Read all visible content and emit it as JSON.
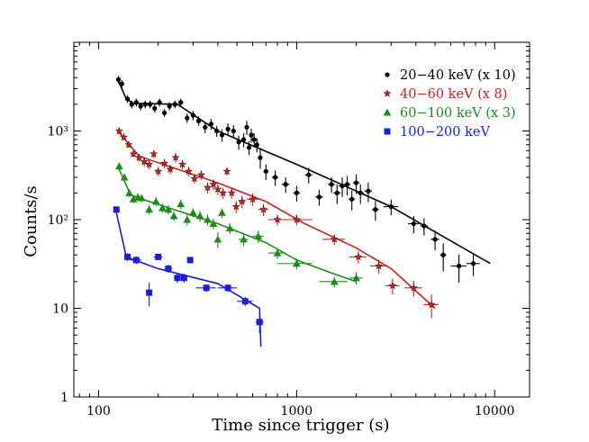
{
  "chart_data": {
    "type": "scatter",
    "xscale": "log",
    "yscale": "log",
    "xlim": [
      75,
      15000
    ],
    "ylim": [
      1,
      10000
    ],
    "xlabel": "Time since trigger (s)",
    "ylabel": "Counts/s",
    "xticks": [
      {
        "value": 100,
        "label": "100"
      },
      {
        "value": 1000,
        "label": "1000"
      },
      {
        "value": 10000,
        "label": "10000"
      }
    ],
    "yticks": [
      {
        "value": 1,
        "label": "1"
      },
      {
        "value": 10,
        "label": "10"
      },
      {
        "value": 100,
        "label": "10²"
      },
      {
        "value": 1000,
        "label": "10³"
      }
    ],
    "legend_position": "top-right",
    "series": [
      {
        "name": "20−40 keV (x 10)",
        "color": "#000000",
        "marker": "circle",
        "points": [
          [
            126,
            3800,
            2,
            0.1
          ],
          [
            131,
            3400,
            2,
            0.1
          ],
          [
            140,
            2300,
            3,
            0.1
          ],
          [
            147,
            2000,
            3,
            0.1
          ],
          [
            155,
            2100,
            3,
            0.1
          ],
          [
            163,
            1900,
            3,
            0.1
          ],
          [
            172,
            2000,
            4,
            0.1
          ],
          [
            182,
            2000,
            4,
            0.1
          ],
          [
            192,
            1800,
            4,
            0.1
          ],
          [
            203,
            2100,
            5,
            0.1
          ],
          [
            215,
            1600,
            5,
            0.1
          ],
          [
            228,
            1900,
            5,
            0.1
          ],
          [
            243,
            2000,
            6,
            0.1
          ],
          [
            260,
            2100,
            6,
            0.1
          ],
          [
            280,
            1400,
            7,
            0.12
          ],
          [
            300,
            1500,
            8,
            0.12
          ],
          [
            320,
            1300,
            8,
            0.12
          ],
          [
            345,
            1100,
            9,
            0.14
          ],
          [
            370,
            1200,
            10,
            0.14
          ],
          [
            395,
            1000,
            10,
            0.14
          ],
          [
            420,
            900,
            10,
            0.16
          ],
          [
            450,
            1050,
            12,
            0.16
          ],
          [
            480,
            1000,
            12,
            0.16
          ],
          [
            510,
            750,
            12,
            0.18
          ],
          [
            540,
            800,
            12,
            0.18
          ],
          [
            560,
            1100,
            10,
            0.18
          ],
          [
            575,
            650,
            10,
            0.18
          ],
          [
            590,
            900,
            10,
            0.18
          ],
          [
            610,
            800,
            10,
            0.18
          ],
          [
            630,
            700,
            10,
            0.18
          ],
          [
            655,
            500,
            10,
            0.25
          ],
          [
            700,
            350,
            20,
            0.2
          ],
          [
            780,
            300,
            30,
            0.2
          ],
          [
            880,
            250,
            40,
            0.2
          ],
          [
            1000,
            200,
            40,
            0.2
          ],
          [
            1150,
            320,
            50,
            0.2
          ],
          [
            1300,
            180,
            60,
            0.2
          ],
          [
            1500,
            250,
            60,
            0.2
          ],
          [
            1600,
            200,
            70,
            0.25
          ],
          [
            1700,
            240,
            70,
            0.25
          ],
          [
            1800,
            250,
            70,
            0.25
          ],
          [
            1900,
            170,
            70,
            0.25
          ],
          [
            2000,
            260,
            80,
            0.25
          ],
          [
            2100,
            200,
            80,
            0.25
          ],
          [
            2300,
            210,
            100,
            0.25
          ],
          [
            2500,
            130,
            100,
            0.25
          ],
          [
            3000,
            140,
            250,
            0.2
          ],
          [
            3900,
            90,
            250,
            0.22
          ],
          [
            4400,
            85,
            200,
            0.22
          ],
          [
            5000,
            60,
            250,
            0.25
          ],
          [
            5500,
            40,
            200,
            0.35
          ],
          [
            6600,
            30,
            600,
            0.35
          ],
          [
            7800,
            32,
            600,
            0.28
          ]
        ],
        "fit": [
          [
            125,
            3800
          ],
          [
            138,
            2300
          ],
          [
            150,
            2050
          ],
          [
            250,
            2000
          ],
          [
            400,
            1000
          ],
          [
            1000,
            420
          ],
          [
            3000,
            140
          ],
          [
            9500,
            32
          ]
        ]
      },
      {
        "name": "40−60 keV (x 8)",
        "color": "#cc2020",
        "marker": "star",
        "points": [
          [
            127,
            1000,
            2,
            0.08
          ],
          [
            134,
            850,
            3,
            0.08
          ],
          [
            142,
            700,
            3,
            0.08
          ],
          [
            150,
            550,
            3,
            0.08
          ],
          [
            160,
            500,
            4,
            0.1
          ],
          [
            170,
            450,
            4,
            0.12
          ],
          [
            180,
            420,
            4,
            0.12
          ],
          [
            190,
            550,
            4,
            0.1
          ],
          [
            200,
            350,
            5,
            0.12
          ],
          [
            215,
            430,
            5,
            0.12
          ],
          [
            230,
            370,
            6,
            0.12
          ],
          [
            245,
            500,
            6,
            0.12
          ],
          [
            265,
            420,
            7,
            0.12
          ],
          [
            285,
            350,
            8,
            0.12
          ],
          [
            305,
            290,
            8,
            0.12
          ],
          [
            330,
            320,
            9,
            0.12
          ],
          [
            355,
            230,
            10,
            0.14
          ],
          [
            380,
            250,
            10,
            0.14
          ],
          [
            400,
            220,
            10,
            0.14
          ],
          [
            425,
            200,
            10,
            0.14
          ],
          [
            445,
            350,
            10,
            0.1
          ],
          [
            470,
            200,
            10,
            0.14
          ],
          [
            495,
            140,
            10,
            0.16
          ],
          [
            530,
            160,
            20,
            0.16
          ],
          [
            600,
            170,
            40,
            0.16
          ],
          [
            680,
            130,
            40,
            0.16
          ],
          [
            800,
            100,
            80,
            0.14
          ],
          [
            1000,
            100,
            200,
            0.14
          ],
          [
            1550,
            60,
            200,
            0.14
          ],
          [
            2050,
            38,
            200,
            0.16
          ],
          [
            2600,
            30,
            250,
            0.18
          ],
          [
            3050,
            18,
            250,
            0.2
          ],
          [
            3900,
            17,
            400,
            0.2
          ],
          [
            4800,
            11,
            400,
            0.3
          ]
        ],
        "fit": [
          [
            125,
            1000
          ],
          [
            160,
            520
          ],
          [
            400,
            260
          ],
          [
            700,
            160
          ],
          [
            1100,
            90
          ],
          [
            2000,
            48
          ],
          [
            3000,
            28
          ],
          [
            5000,
            10
          ]
        ]
      },
      {
        "name": "60−100 keV (x 3)",
        "color": "#1a8c1a",
        "marker": "triangle",
        "points": [
          [
            127,
            400,
            2,
            0.1
          ],
          [
            135,
            300,
            3,
            0.1
          ],
          [
            143,
            200,
            3,
            0.1
          ],
          [
            150,
            170,
            3,
            0.1
          ],
          [
            158,
            180,
            3,
            0.1
          ],
          [
            165,
            175,
            4,
            0.1
          ],
          [
            180,
            130,
            5,
            0.12
          ],
          [
            195,
            160,
            5,
            0.12
          ],
          [
            210,
            135,
            5,
            0.12
          ],
          [
            225,
            130,
            6,
            0.12
          ],
          [
            240,
            110,
            6,
            0.12
          ],
          [
            260,
            150,
            7,
            0.12
          ],
          [
            280,
            100,
            7,
            0.14
          ],
          [
            300,
            120,
            8,
            0.12
          ],
          [
            325,
            110,
            8,
            0.14
          ],
          [
            355,
            100,
            10,
            0.14
          ],
          [
            380,
            90,
            10,
            0.14
          ],
          [
            400,
            60,
            10,
            0.2
          ],
          [
            420,
            120,
            10,
            0.12
          ],
          [
            460,
            80,
            15,
            0.14
          ],
          [
            540,
            60,
            30,
            0.16
          ],
          [
            640,
            65,
            40,
            0.16
          ],
          [
            800,
            42,
            80,
            0.14
          ],
          [
            1000,
            32,
            200,
            0.14
          ],
          [
            1550,
            20,
            250,
            0.14
          ],
          [
            2000,
            22,
            150,
            0.16
          ]
        ],
        "fit": [
          [
            125,
            400
          ],
          [
            145,
            190
          ],
          [
            180,
            160
          ],
          [
            400,
            90
          ],
          [
            700,
            55
          ],
          [
            1000,
            35
          ],
          [
            1500,
            25
          ],
          [
            2000,
            20
          ]
        ]
      },
      {
        "name": "100−200 keV",
        "color": "#1c1cdc",
        "marker": "square",
        "points": [
          [
            123,
            130,
            4,
            0.03
          ],
          [
            140,
            38,
            5,
            0.1
          ],
          [
            155,
            35,
            10,
            0.1
          ],
          [
            180,
            15,
            5,
            0.3
          ],
          [
            200,
            38,
            10,
            0.08
          ],
          [
            225,
            28,
            10,
            0.1
          ],
          [
            250,
            22,
            10,
            0.12
          ],
          [
            270,
            22,
            10,
            0.12
          ],
          [
            290,
            35,
            10,
            0.08
          ],
          [
            350,
            17,
            40,
            0.1
          ],
          [
            450,
            17,
            50,
            0.1
          ],
          [
            550,
            12,
            50,
            0.12
          ],
          [
            650,
            7,
            30,
            0.25
          ]
        ],
        "fit": [
          [
            122,
            130
          ],
          [
            138,
            38
          ],
          [
            200,
            28
          ],
          [
            400,
            19
          ],
          [
            650,
            10
          ],
          [
            660,
            3.7
          ]
        ]
      }
    ]
  }
}
